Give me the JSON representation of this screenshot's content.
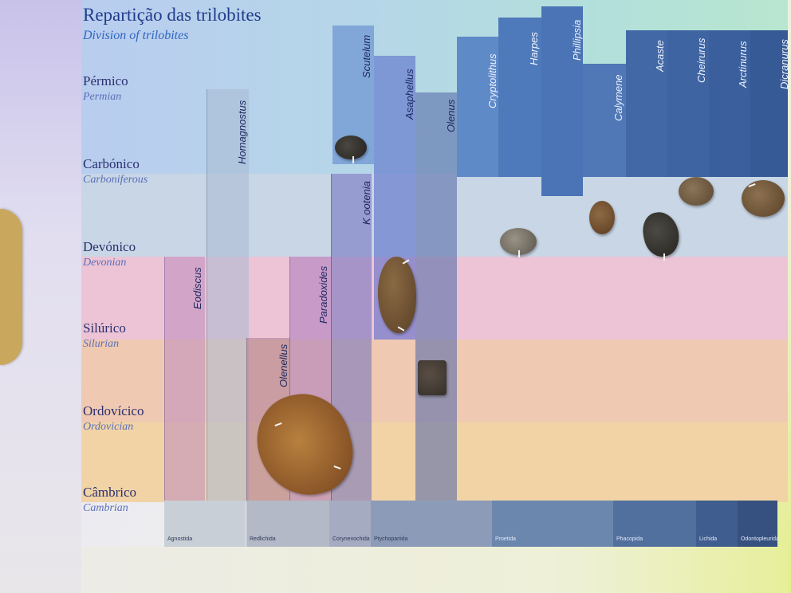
{
  "board": {
    "title": "Repartição das trilobites",
    "subtitle": "Division of trilobites"
  },
  "periods": [
    {
      "pt": "Pérmico",
      "en": "Permian"
    },
    {
      "pt": "Carbónico",
      "en": "Carboniferous"
    },
    {
      "pt": "Devónico",
      "en": "Devonian"
    },
    {
      "pt": "Silúrico",
      "en": "Silurian"
    },
    {
      "pt": "Ordovícico",
      "en": "Ordovician"
    },
    {
      "pt": "Câmbrico",
      "en": "Cambrian"
    }
  ],
  "genera": [
    "Eodiscus",
    "Homagnostus",
    "Olenellus",
    "Paradoxides",
    "K ootenia",
    "Scutelum",
    "Asaphellus",
    "Olenus",
    "Cryptolithus",
    "Harpes",
    "Phillipsia",
    "Calymene",
    "Acaste",
    "Cheirurus",
    "Arctinurus",
    "Dicranurus"
  ],
  "orders": [
    "Agnostida",
    "Redlichida",
    "Corynexochida",
    "Ptychopariida",
    "Proetida",
    "Phacopida",
    "Lichida",
    "Odontopleurida"
  ],
  "colors": {
    "permian_band": "#b8d2ea",
    "carboniferous_band": "#c9d4e6",
    "devonian_band": "#ecc6d8",
    "silurian_band": "#f0cbb6",
    "ordovician_band": "#f2d4a8",
    "cambrian_band": "#f2d9a6",
    "dark_bar": "#3f6aaa",
    "fossil_brown": "#8a5a2e"
  }
}
